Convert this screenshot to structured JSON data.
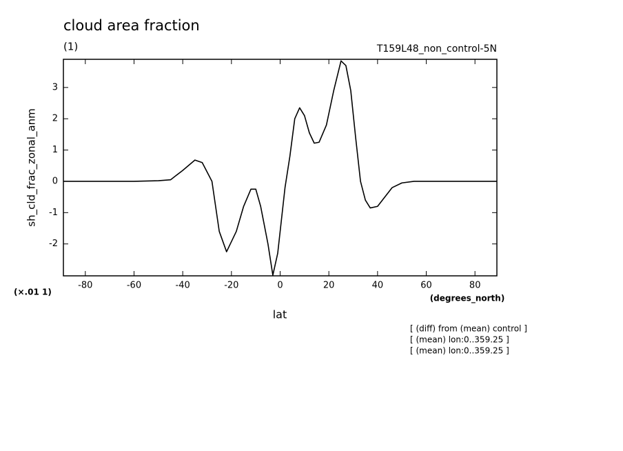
{
  "chart_data": {
    "type": "line",
    "title": "cloud area fraction",
    "subtitle": "(1)",
    "run_label": "T159L48_non_control-5N",
    "ylabel": "sh_cld_frac_zonal_anm",
    "xlabel": "lat",
    "x_units": "(degrees_north)",
    "y_scale_note": "(×.01 1)",
    "notes": [
      "[ (diff) from (mean) control ]",
      "[ (mean) lon:0..359.25 ]",
      "[ (mean) lon:0..359.25 ]"
    ],
    "x": [
      -89,
      -60,
      -50,
      -45,
      -40,
      -35,
      -32,
      -28,
      -25,
      -22,
      -18,
      -15,
      -12,
      -10,
      -8,
      -5,
      -3,
      -1,
      2,
      4,
      6,
      8,
      10,
      12,
      14,
      16,
      19,
      22,
      25,
      27,
      29,
      31,
      33,
      35,
      37,
      40,
      43,
      46,
      50,
      55,
      89
    ],
    "series": [
      {
        "name": "sh_cld_frac_zonal_anm",
        "color": "#000000",
        "values": [
          0,
          0,
          0.02,
          0.05,
          0.35,
          0.68,
          0.6,
          0.0,
          -1.6,
          -2.25,
          -1.6,
          -0.8,
          -0.25,
          -0.25,
          -0.8,
          -2.0,
          -3.0,
          -2.3,
          -0.2,
          0.8,
          2.0,
          2.35,
          2.1,
          1.55,
          1.22,
          1.25,
          1.8,
          2.9,
          3.85,
          3.7,
          2.9,
          1.4,
          0.0,
          -0.6,
          -0.85,
          -0.8,
          -0.5,
          -0.2,
          -0.05,
          0,
          0
        ]
      }
    ],
    "xlim": [
      -89,
      89
    ],
    "ylim": [
      -3.02,
      3.9
    ],
    "xticks": [
      -80,
      -60,
      -40,
      -20,
      0,
      20,
      40,
      60,
      80
    ],
    "yticks": [
      -2,
      -1,
      0,
      1,
      2,
      3
    ]
  }
}
